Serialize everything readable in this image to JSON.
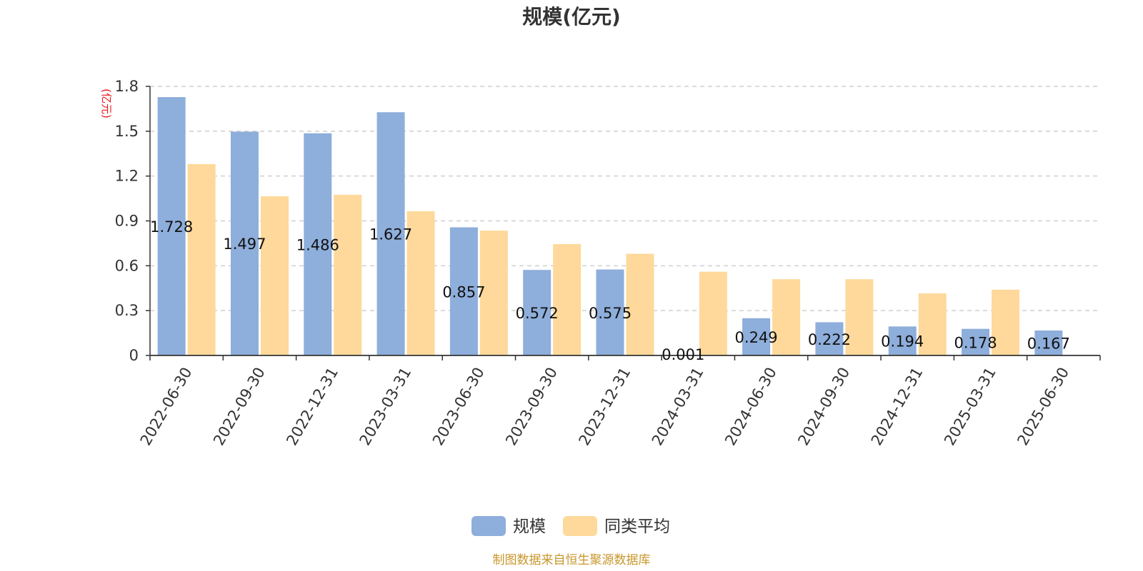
{
  "chart_data": {
    "type": "bar",
    "title": "规模(亿元)",
    "ylabel": "(亿元)",
    "xlabel": "",
    "ylim": [
      0,
      1.8
    ],
    "yticks": [
      "0",
      "0.3",
      "0.6",
      "0.9",
      "1.2",
      "1.5",
      "1.8"
    ],
    "grid": true,
    "legend_position": "bottom",
    "categories": [
      "2022-06-30",
      "2022-09-30",
      "2022-12-31",
      "2023-03-31",
      "2023-06-30",
      "2023-09-30",
      "2023-12-31",
      "2024-03-31",
      "2024-06-30",
      "2024-09-30",
      "2024-12-31",
      "2025-03-31",
      "2025-06-30"
    ],
    "series": [
      {
        "name": "规模",
        "color": "#8eaedb",
        "values": [
          1.728,
          1.497,
          1.486,
          1.627,
          0.857,
          0.572,
          0.575,
          0.001,
          0.249,
          0.222,
          0.194,
          0.178,
          0.167
        ],
        "labels": [
          "1.728",
          "1.497",
          "1.486",
          "1.627",
          "0.857",
          "0.572",
          "0.575",
          "0.001",
          "0.249",
          "0.222",
          "0.194",
          "0.178",
          "0.167"
        ]
      },
      {
        "name": "同类平均",
        "color": "#fed99b",
        "values": [
          1.28,
          1.065,
          1.075,
          0.965,
          0.835,
          0.745,
          0.68,
          0.56,
          0.51,
          0.51,
          0.415,
          0.44,
          null
        ]
      }
    ],
    "source": "制图数据来自恒生聚源数据库"
  }
}
